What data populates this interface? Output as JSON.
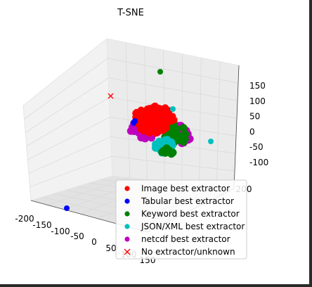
{
  "chart_data": {
    "type": "scatter",
    "title": "T-SNE",
    "axes": {
      "x": {
        "ticks": [
          -200,
          -150,
          -100,
          -50,
          0,
          50,
          100,
          150
        ],
        "label": ""
      },
      "y": {
        "ticks": [
          200
        ],
        "label": ""
      },
      "z": {
        "ticks": [
          -100,
          -50,
          0,
          50,
          100,
          150
        ],
        "label": ""
      }
    },
    "grid": true,
    "legend_position": "bottom-right",
    "series": [
      {
        "name": "Image best extractor",
        "color": "#ff0000",
        "marker": "circle"
      },
      {
        "name": "Tabular best extractor",
        "color": "#0000ff",
        "marker": "circle"
      },
      {
        "name": "Keyword best extractor",
        "color": "#008000",
        "marker": "circle"
      },
      {
        "name": "JSON/XML best extractor",
        "color": "#00bfbf",
        "marker": "circle"
      },
      {
        "name": "netcdf best extractor",
        "color": "#bf00bf",
        "marker": "circle"
      },
      {
        "name": "No extractor/unknown",
        "color": "#ff0000",
        "marker": "x"
      }
    ]
  }
}
